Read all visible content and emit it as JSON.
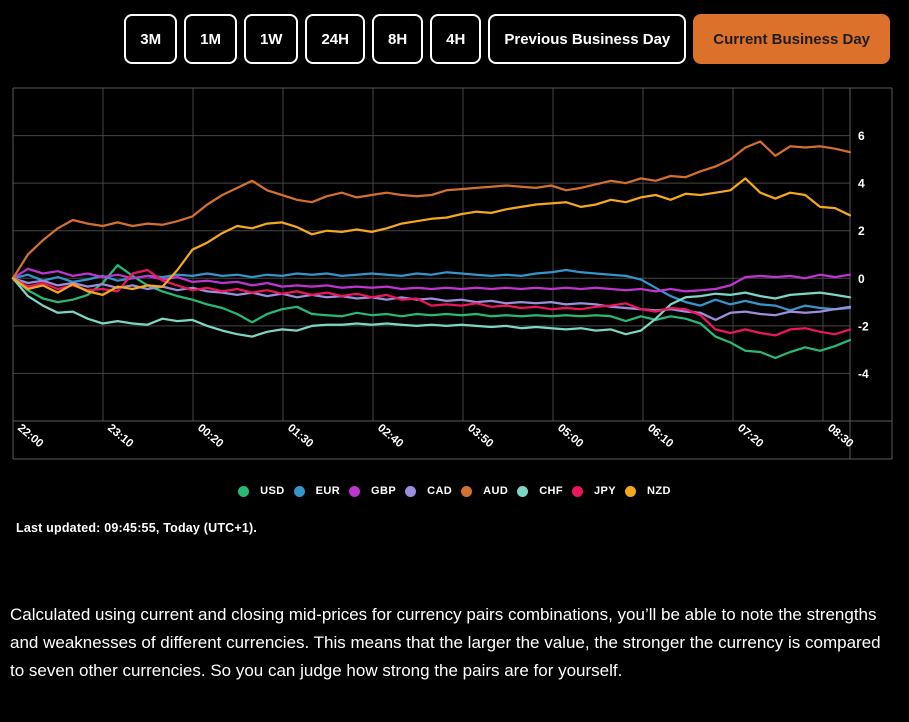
{
  "toolbar": {
    "buttons": [
      {
        "label": "3M",
        "active": false
      },
      {
        "label": "1M",
        "active": false
      },
      {
        "label": "1W",
        "active": false
      },
      {
        "label": "24H",
        "active": false
      },
      {
        "label": "8H",
        "active": false
      },
      {
        "label": "4H",
        "active": false
      },
      {
        "label": "Previous Business Day",
        "active": false
      },
      {
        "label": "Current Business Day",
        "active": true
      }
    ],
    "active_color": "#DC712B"
  },
  "chart_data": {
    "type": "line",
    "background": "#000000",
    "grid": true,
    "grid_color": "#454545",
    "border_color": "#5a5a5a",
    "legend_position": "bottom",
    "ylim": [
      -6,
      8
    ],
    "y_ticks": [
      6,
      4,
      2,
      0,
      -2,
      -4
    ],
    "x_tick_labels": [
      "22:00",
      "23:10",
      "00:20",
      "01:30",
      "02:40",
      "03:50",
      "05:00",
      "06:10",
      "07:20",
      "08:30"
    ],
    "series": [
      {
        "name": "USD",
        "color": "#28BA74",
        "values": [
          0,
          -0.5,
          -0.85,
          -1.0,
          -0.9,
          -0.7,
          -0.2,
          0.55,
          0.1,
          -0.3,
          -0.55,
          -0.75,
          -0.9,
          -1.1,
          -1.25,
          -1.5,
          -1.85,
          -1.5,
          -1.3,
          -1.2,
          -1.5,
          -1.55,
          -1.6,
          -1.45,
          -1.55,
          -1.5,
          -1.6,
          -1.5,
          -1.55,
          -1.5,
          -1.55,
          -1.5,
          -1.6,
          -1.55,
          -1.6,
          -1.55,
          -1.6,
          -1.55,
          -1.6,
          -1.55,
          -1.6,
          -1.8,
          -1.6,
          -1.75,
          -1.6,
          -1.7,
          -1.9,
          -2.45,
          -2.7,
          -3.05,
          -3.1,
          -3.35,
          -3.1,
          -2.9,
          -3.05,
          -2.85,
          -2.6
        ]
      },
      {
        "name": "EUR",
        "color": "#3595C9",
        "values": [
          0,
          0.15,
          -0.1,
          0.05,
          -0.15,
          -0.05,
          0.1,
          -0.1,
          0,
          0.1,
          0.05,
          0.15,
          0.1,
          0.2,
          0.1,
          0.15,
          0.05,
          0.15,
          0.1,
          0.2,
          0.15,
          0.2,
          0.1,
          0.15,
          0.2,
          0.15,
          0.1,
          0.2,
          0.15,
          0.25,
          0.2,
          0.15,
          0.1,
          0.15,
          0.1,
          0.2,
          0.25,
          0.35,
          0.25,
          0.2,
          0.15,
          0.1,
          -0.05,
          -0.4,
          -0.75,
          -1.0,
          -1.15,
          -0.9,
          -1.1,
          -0.95,
          -1.1,
          -1.15,
          -1.35,
          -1.15,
          -1.25,
          -1.3,
          -1.25
        ]
      },
      {
        "name": "GBP",
        "color": "#BF35CF",
        "values": [
          0,
          0.4,
          0.2,
          0.3,
          0.1,
          0.2,
          0.05,
          0.15,
          0,
          0.1,
          -0.05,
          0.05,
          -0.15,
          -0.1,
          -0.2,
          -0.15,
          -0.3,
          -0.2,
          -0.35,
          -0.3,
          -0.35,
          -0.3,
          -0.4,
          -0.35,
          -0.4,
          -0.35,
          -0.45,
          -0.4,
          -0.45,
          -0.4,
          -0.45,
          -0.4,
          -0.45,
          -0.4,
          -0.45,
          -0.4,
          -0.45,
          -0.4,
          -0.45,
          -0.4,
          -0.45,
          -0.5,
          -0.45,
          -0.55,
          -0.45,
          -0.55,
          -0.5,
          -0.45,
          -0.3,
          0.05,
          0.1,
          0.05,
          0.1,
          0,
          0.15,
          0.05,
          0.15
        ]
      },
      {
        "name": "CAD",
        "color": "#9D8EDC",
        "values": [
          0,
          -0.2,
          -0.1,
          -0.3,
          -0.2,
          -0.35,
          -0.25,
          -0.4,
          -0.3,
          -0.45,
          -0.35,
          -0.5,
          -0.4,
          -0.55,
          -0.6,
          -0.7,
          -0.6,
          -0.75,
          -0.65,
          -0.8,
          -0.7,
          -0.8,
          -0.75,
          -0.85,
          -0.8,
          -0.9,
          -0.8,
          -0.9,
          -0.85,
          -0.95,
          -0.9,
          -1.0,
          -0.95,
          -1.05,
          -1.0,
          -1.05,
          -1.0,
          -1.1,
          -1.05,
          -1.1,
          -1.2,
          -1.25,
          -1.3,
          -1.35,
          -1.3,
          -1.4,
          -1.45,
          -1.75,
          -1.45,
          -1.4,
          -1.5,
          -1.55,
          -1.4,
          -1.45,
          -1.4,
          -1.3,
          -1.2
        ]
      },
      {
        "name": "AUD",
        "color": "#D2702F",
        "values": [
          0,
          1.0,
          1.6,
          2.1,
          2.45,
          2.3,
          2.2,
          2.35,
          2.2,
          2.3,
          2.25,
          2.4,
          2.6,
          3.1,
          3.5,
          3.8,
          4.1,
          3.7,
          3.5,
          3.3,
          3.2,
          3.45,
          3.6,
          3.4,
          3.5,
          3.6,
          3.5,
          3.45,
          3.5,
          3.7,
          3.75,
          3.8,
          3.85,
          3.9,
          3.85,
          3.8,
          3.9,
          3.7,
          3.8,
          3.95,
          4.1,
          4.0,
          4.2,
          4.1,
          4.3,
          4.25,
          4.5,
          4.7,
          5.0,
          5.5,
          5.75,
          5.15,
          5.55,
          5.5,
          5.55,
          5.45,
          5.3
        ]
      },
      {
        "name": "CHF",
        "color": "#7BD7C3",
        "values": [
          0,
          -0.75,
          -1.15,
          -1.45,
          -1.4,
          -1.7,
          -1.9,
          -1.8,
          -1.9,
          -1.95,
          -1.7,
          -1.8,
          -1.75,
          -2.0,
          -2.2,
          -2.35,
          -2.45,
          -2.25,
          -2.15,
          -2.2,
          -2.0,
          -1.95,
          -1.95,
          -1.9,
          -1.95,
          -1.9,
          -1.95,
          -2.0,
          -1.95,
          -2.0,
          -1.95,
          -2.0,
          -2.05,
          -2.0,
          -2.1,
          -2.05,
          -2.1,
          -2.15,
          -2.1,
          -2.2,
          -2.15,
          -2.35,
          -2.2,
          -1.7,
          -1.1,
          -0.8,
          -0.75,
          -0.65,
          -0.7,
          -0.6,
          -0.75,
          -0.85,
          -0.7,
          -0.65,
          -0.6,
          -0.7,
          -0.8
        ]
      },
      {
        "name": "JPY",
        "color": "#EB175D",
        "values": [
          0,
          -0.35,
          -0.2,
          -0.45,
          -0.3,
          -0.5,
          -0.45,
          -0.55,
          0.2,
          0.35,
          -0.1,
          -0.3,
          -0.5,
          -0.4,
          -0.55,
          -0.45,
          -0.6,
          -0.5,
          -0.65,
          -0.55,
          -0.7,
          -0.6,
          -0.75,
          -0.65,
          -0.8,
          -0.7,
          -0.9,
          -0.85,
          -1.15,
          -1.1,
          -1.15,
          -1.05,
          -1.2,
          -1.15,
          -1.25,
          -1.2,
          -1.3,
          -1.25,
          -1.3,
          -1.2,
          -1.15,
          -1.05,
          -1.3,
          -1.4,
          -1.25,
          -1.3,
          -1.55,
          -2.15,
          -2.3,
          -2.15,
          -2.3,
          -2.4,
          -2.15,
          -2.1,
          -2.25,
          -2.35,
          -2.15
        ]
      },
      {
        "name": "NZD",
        "color": "#F2A91C",
        "values": [
          0,
          -0.45,
          -0.3,
          -0.6,
          -0.25,
          -0.55,
          -0.7,
          -0.35,
          -0.45,
          -0.3,
          -0.35,
          0.35,
          1.2,
          1.5,
          1.9,
          2.2,
          2.1,
          2.3,
          2.35,
          2.15,
          1.85,
          2.0,
          1.95,
          2.05,
          1.95,
          2.1,
          2.3,
          2.4,
          2.5,
          2.55,
          2.7,
          2.8,
          2.75,
          2.9,
          3.0,
          3.1,
          3.15,
          3.2,
          3.0,
          3.1,
          3.3,
          3.2,
          3.4,
          3.5,
          3.3,
          3.55,
          3.5,
          3.6,
          3.7,
          4.2,
          3.6,
          3.35,
          3.6,
          3.5,
          3.0,
          2.95,
          2.65
        ]
      }
    ]
  },
  "status": {
    "last_updated": "Last updated: 09:45:55, Today (UTC+1)."
  },
  "description": {
    "text": "Calculated using current and closing mid-prices for currency pairs combinations, you’ll be able to note the strengths and weaknesses of different currencies. This means that the larger the value, the stronger the currency is compared to seven other currencies. So you can judge how strong the pairs are for yourself."
  }
}
